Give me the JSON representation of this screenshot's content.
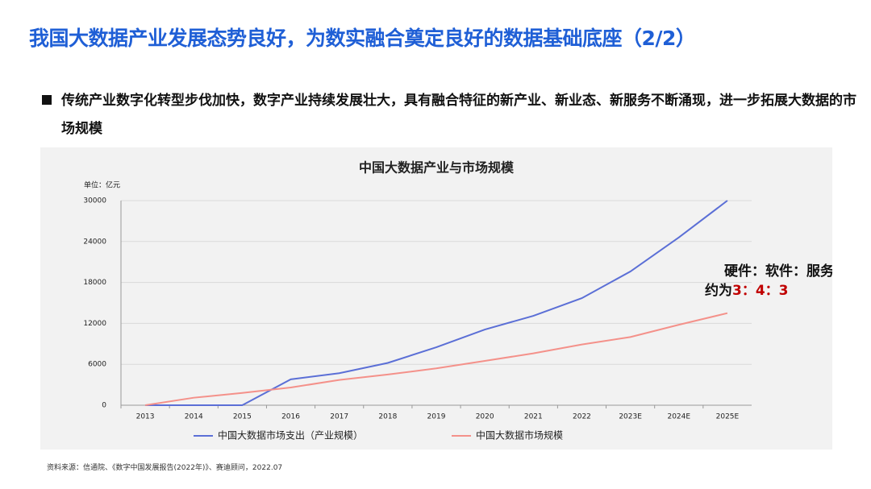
{
  "header": {
    "title": "我国大数据产业发展态势良好，为数实融合奠定良好的数据基础底座（2/2）"
  },
  "bullet": "传统产业数字化转型步伐加快，数字产业持续发展壮大，具有融合特征的新产业、新业态、新服务不断涌现，进一步拓展大数据的市场规模",
  "chart_data": {
    "type": "line",
    "title": "中国大数据产业与市场规模",
    "y_unit_label": "单位：亿元",
    "categories": [
      "2013",
      "2014",
      "2015",
      "2016",
      "2017",
      "2018",
      "2019",
      "2020",
      "2021",
      "2022",
      "2023E",
      "2024E",
      "2025E"
    ],
    "series": [
      {
        "name": "中国大数据市场支出（产业规模）",
        "color": "#5b6fd6",
        "values": [
          0,
          0,
          0,
          3800,
          4700,
          6200,
          8500,
          11100,
          13100,
          15700,
          19600,
          24600,
          30000
        ]
      },
      {
        "name": "中国大数据市场规模",
        "color": "#f4918a",
        "values": [
          0,
          1100,
          1800,
          2600,
          3700,
          4500,
          5400,
          6500,
          7600,
          8900,
          10000,
          11800,
          13500
        ]
      }
    ],
    "ylim": [
      0,
      30000
    ],
    "yticks": [
      0,
      6000,
      12000,
      18000,
      24000,
      30000
    ],
    "grid": true,
    "legend": "bottom",
    "annotation": {
      "line1": "硬件：软件：服务",
      "line2_prefix": "约为",
      "line2_ratio": "3：4：3"
    }
  },
  "source": "资料来源：信通院、《数字中国发展报告(2022年)》、赛迪顾问，2022.07"
}
